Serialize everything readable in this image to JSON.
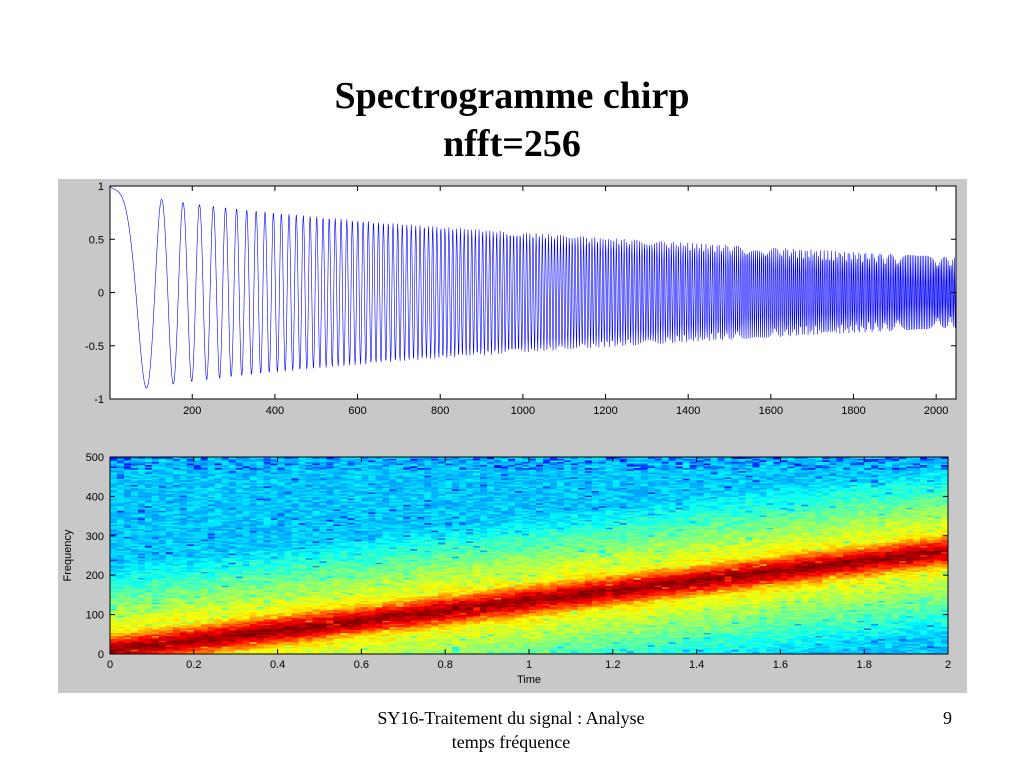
{
  "slide": {
    "title_line1": "Spectrogramme chirp",
    "title_line2": "nfft=256",
    "footer_line1": "SY16-Traitement du signal : Analyse",
    "footer_line2": "temps fréquence",
    "page_number": "9"
  },
  "colors": {
    "figure_background": "#c8c8c8",
    "signal_line": "#0000ff",
    "axes_background": "#ffffff"
  },
  "chart_data": [
    {
      "type": "line",
      "title": "",
      "xlabel": "",
      "ylabel": "",
      "xlim": [
        1,
        2048
      ],
      "ylim": [
        -1,
        1
      ],
      "xticks": [
        200,
        400,
        600,
        800,
        1000,
        1200,
        1400,
        1600,
        1800,
        2000
      ],
      "yticks": [
        -1,
        -0.5,
        0,
        0.5,
        1
      ],
      "ytick_labels": [
        "-1",
        "-0.5",
        "0",
        "0.5",
        "1"
      ],
      "series": [
        {
          "description_of_signal": "linear chirp starting at 0 Hz, reaching ~250 Hz at sample 2048, with decaying amplitude",
          "samples": 2048,
          "sample_rate_hz": 1000,
          "f0_hz": 0,
          "f1_hz": 262,
          "amplitude_start": 1.0,
          "amplitude_end": 0.33
        }
      ],
      "grid": false
    },
    {
      "type": "heatmap",
      "title": "",
      "xlabel": "Time",
      "ylabel": "Frequency",
      "xlim": [
        0,
        2
      ],
      "ylim": [
        0,
        500
      ],
      "xticks": [
        0,
        0.2,
        0.4,
        0.6,
        0.8,
        1,
        1.2,
        1.4,
        1.6,
        1.8,
        2
      ],
      "xtick_labels": [
        "0",
        "0.2",
        "0.4",
        "0.6",
        "0.8",
        "1",
        "1.2",
        "1.4",
        "1.6",
        "1.8",
        "2"
      ],
      "yticks": [
        0,
        100,
        200,
        300,
        400,
        500
      ],
      "colormap": "jet",
      "ridge": {
        "freq_at_time0": 10,
        "freq_at_time2": 262
      },
      "grid": false
    }
  ]
}
